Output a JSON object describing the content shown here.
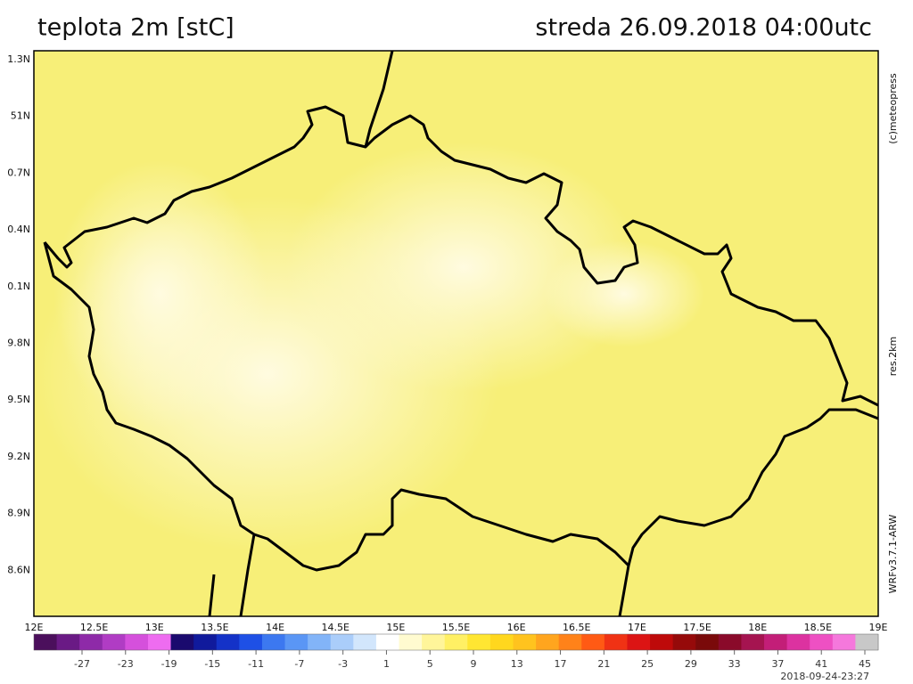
{
  "header": {
    "title": "teplota 2m [stC]",
    "date": "streda 26.09.2018 04:00utc"
  },
  "map": {
    "y_labels": [
      "1.3N",
      "51N",
      "0.7N",
      "0.4N",
      "0.1N",
      "9.8N",
      "9.5N",
      "9.2N",
      "8.9N",
      "8.6N"
    ],
    "x_labels": [
      "12E",
      "12.5E",
      "13E",
      "13.5E",
      "14E",
      "14.5E",
      "15E",
      "15.5E",
      "16E",
      "16.5E",
      "17E",
      "17.5E",
      "18E",
      "18.5E",
      "19E"
    ]
  },
  "side": {
    "copyright": "(c)meteopress",
    "resolution": "res.2km",
    "model": "WRFv3.7.1-ARW"
  },
  "colorbar": {
    "ticks": [
      -27,
      -23,
      -19,
      -15,
      -11,
      -7,
      -3,
      1,
      5,
      9,
      13,
      17,
      21,
      25,
      29,
      33,
      37,
      41,
      45
    ]
  },
  "footer": {
    "timestamp": "2018-09-24-23:27"
  }
}
